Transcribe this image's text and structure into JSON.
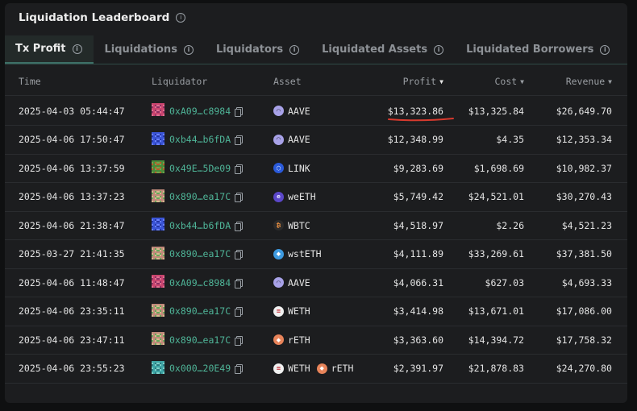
{
  "title": "Liquidation Leaderboard",
  "tabs": [
    {
      "label": "Tx Profit",
      "active": true
    },
    {
      "label": "Liquidations",
      "active": false
    },
    {
      "label": "Liquidators",
      "active": false
    },
    {
      "label": "Liquidated Assets",
      "active": false
    },
    {
      "label": "Liquidated Borrowers",
      "active": false
    }
  ],
  "columns": {
    "time": "Time",
    "liquidator": "Liquidator",
    "asset": "Asset",
    "profit": "Profit",
    "cost": "Cost",
    "revenue": "Revenue"
  },
  "rows": [
    {
      "time": "2025-04-03 05:44:47",
      "liquidator": "0xA09…c8984",
      "avatar": "pink-pixel",
      "asset": "AAVE",
      "token_icon": "aave-icon",
      "profit": "$13,323.86",
      "cost": "$13,325.84",
      "revenue": "$26,649.70"
    },
    {
      "time": "2025-04-06 17:50:47",
      "liquidator": "0xb44…b6fDA",
      "avatar": "blue-pixel",
      "asset": "AAVE",
      "token_icon": "aave-icon",
      "profit": "$12,348.99",
      "cost": "$4.35",
      "revenue": "$12,353.34"
    },
    {
      "time": "2025-04-06 13:37:59",
      "liquidator": "0x49E…5De09",
      "avatar": "green-orange-pixel",
      "asset": "LINK",
      "token_icon": "link-icon",
      "profit": "$9,283.69",
      "cost": "$1,698.69",
      "revenue": "$10,982.37"
    },
    {
      "time": "2025-04-06 13:37:23",
      "liquidator": "0x890…ea17C",
      "avatar": "checker-pixel",
      "asset": "weETH",
      "token_icon": "weeth-icon",
      "profit": "$5,749.42",
      "cost": "$24,521.01",
      "revenue": "$30,270.43"
    },
    {
      "time": "2025-04-06 21:38:47",
      "liquidator": "0xb44…b6fDA",
      "avatar": "blue-pixel",
      "asset": "WBTC",
      "token_icon": "wbtc-icon",
      "profit": "$4,518.97",
      "cost": "$2.26",
      "revenue": "$4,521.23"
    },
    {
      "time": "2025-03-27 21:41:35",
      "liquidator": "0x890…ea17C",
      "avatar": "checker-pixel",
      "asset": "wstETH",
      "token_icon": "wsteth-icon",
      "profit": "$4,111.89",
      "cost": "$33,269.61",
      "revenue": "$37,381.50"
    },
    {
      "time": "2025-04-06 11:48:47",
      "liquidator": "0xA09…c8984",
      "avatar": "pink-pixel",
      "asset": "AAVE",
      "token_icon": "aave-icon",
      "profit": "$4,066.31",
      "cost": "$627.03",
      "revenue": "$4,693.33"
    },
    {
      "time": "2025-04-06 23:35:11",
      "liquidator": "0x890…ea17C",
      "avatar": "checker-pixel",
      "asset": "WETH",
      "token_icon": "weth-icon",
      "profit": "$3,414.98",
      "cost": "$13,671.01",
      "revenue": "$17,086.00"
    },
    {
      "time": "2025-04-06 23:47:11",
      "liquidator": "0x890…ea17C",
      "avatar": "checker-pixel",
      "asset": "rETH",
      "token_icon": "reth-icon",
      "profit": "$3,363.60",
      "cost": "$14,394.72",
      "revenue": "$17,758.32"
    },
    {
      "time": "2025-04-06 23:55:23",
      "liquidator": "0x000…20E49",
      "avatar": "teal-pixel",
      "asset": "WETH",
      "token_icon": "weth-icon",
      "asset2": "rETH",
      "token_icon2": "reth-icon",
      "profit": "$2,391.97",
      "cost": "$21,878.83",
      "revenue": "$24,270.80"
    }
  ],
  "colors": {
    "accent": "#4fb598",
    "highlight_underline": "#d83a2e"
  }
}
